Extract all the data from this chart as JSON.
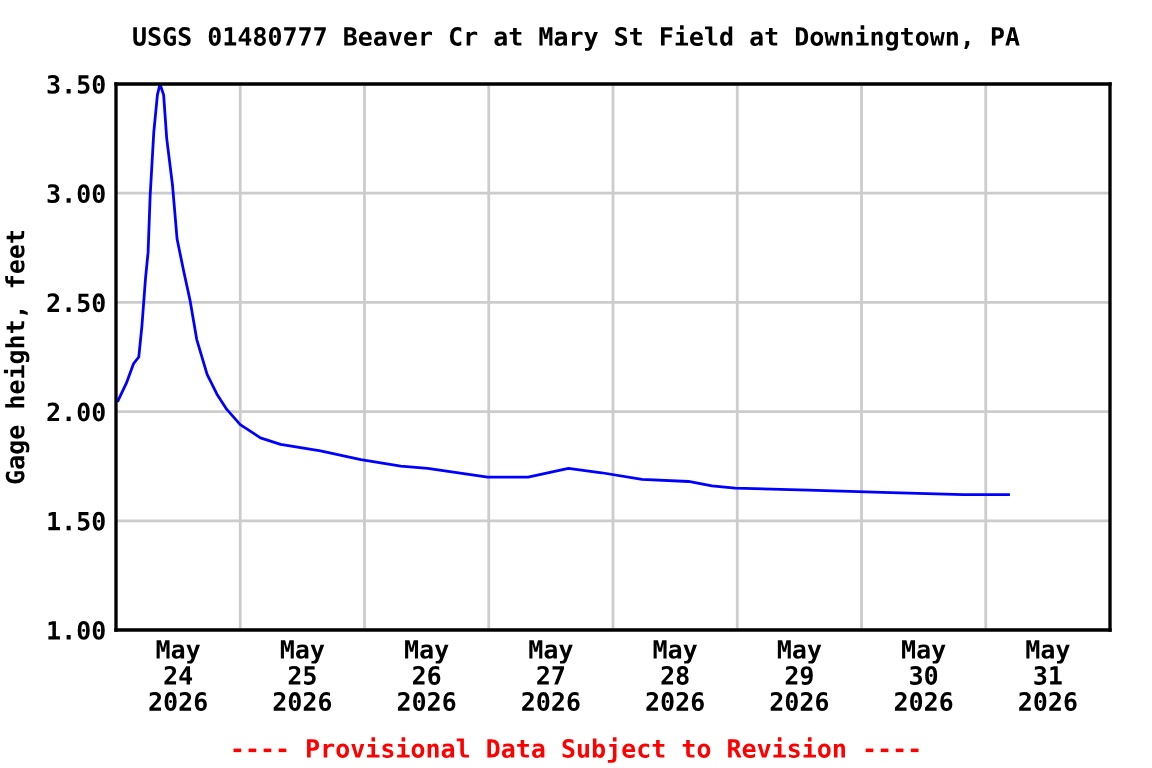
{
  "chart_data": {
    "type": "line",
    "title": "USGS 01480777 Beaver Cr at Mary St Field at Downingtown, PA",
    "ylabel": "Gage height, feet",
    "annotations": [
      "---- Provisional Data Subject to Revision ----"
    ],
    "x": [
      "2026-05-24T00:24",
      "2026-05-24T02:00",
      "2026-05-24T03:24",
      "2026-05-24T04:24",
      "2026-05-24T05:00",
      "2026-05-24T05:42",
      "2026-05-24T06:12",
      "2026-05-24T06:36",
      "2026-05-24T07:18",
      "2026-05-24T08:00",
      "2026-05-24T08:30",
      "2026-05-24T09:12",
      "2026-05-24T09:48",
      "2026-05-24T10:54",
      "2026-05-24T11:48",
      "2026-05-24T13:06",
      "2026-05-24T14:18",
      "2026-05-24T15:36",
      "2026-05-24T17:36",
      "2026-05-24T19:30",
      "2026-05-24T21:24",
      "2026-05-25T00:00",
      "2026-05-25T03:54",
      "2026-05-25T07:48",
      "2026-05-25T15:30",
      "2026-05-25T23:18",
      "2026-05-26T07:00",
      "2026-05-26T12:12",
      "2026-05-26T23:48",
      "2026-05-27T07:36",
      "2026-05-27T15:24",
      "2026-05-27T21:48",
      "2026-05-28T05:36",
      "2026-05-28T14:36",
      "2026-05-28T19:06",
      "2026-05-28T23:36",
      "2026-05-29T13:48",
      "2026-05-30T04:00",
      "2026-05-30T19:36",
      "2026-05-31T04:24"
    ],
    "series": [
      {
        "color": "#0000ff",
        "values": [
          2.05,
          2.13,
          2.22,
          2.25,
          2.39,
          2.61,
          2.73,
          2.99,
          3.28,
          3.45,
          3.5,
          3.45,
          3.25,
          3.04,
          2.79,
          2.64,
          2.51,
          2.33,
          2.17,
          2.08,
          2.01,
          1.94,
          1.88,
          1.85,
          1.82,
          1.78,
          1.75,
          1.74,
          1.7,
          1.7,
          1.74,
          1.72,
          1.69,
          1.68,
          1.66,
          1.65,
          1.64,
          1.63,
          1.62,
          1.62
        ]
      }
    ],
    "xlim": [
      "2026-05-24T00:00",
      "2026-06-01T00:00"
    ],
    "xticks": [
      {
        "value": "2026-05-25T00:00",
        "label": null
      },
      {
        "value": "2026-05-26T00:00",
        "label": null
      },
      {
        "value": "2026-05-27T00:00",
        "label": null
      },
      {
        "value": "2026-05-28T00:00",
        "label": null
      },
      {
        "value": "2026-05-29T00:00",
        "label": null
      },
      {
        "value": "2026-05-30T00:00",
        "label": null
      },
      {
        "value": "2026-05-31T00:00",
        "label": null
      },
      {
        "value": "2026-05-24T12:00",
        "label": "May\n24\n2026"
      },
      {
        "value": "2026-05-25T12:00",
        "label": "May\n25\n2026"
      },
      {
        "value": "2026-05-26T12:00",
        "label": "May\n26\n2026"
      },
      {
        "value": "2026-05-27T12:00",
        "label": "May\n27\n2026"
      },
      {
        "value": "2026-05-28T12:00",
        "label": "May\n28\n2026"
      },
      {
        "value": "2026-05-29T12:00",
        "label": "May\n29\n2026"
      },
      {
        "value": "2026-05-30T12:00",
        "label": "May\n30\n2026"
      },
      {
        "value": "2026-05-31T12:00",
        "label": "May\n31\n2026"
      }
    ],
    "ylim": [
      1.0,
      3.5
    ],
    "yticks": [
      {
        "value": 1.0,
        "label": "1.00"
      },
      {
        "value": 1.5,
        "label": "1.50"
      },
      {
        "value": 2.0,
        "label": "2.00"
      },
      {
        "value": 2.5,
        "label": "2.50"
      },
      {
        "value": 3.0,
        "label": "3.00"
      },
      {
        "value": 3.5,
        "label": "3.50"
      }
    ],
    "grid": true,
    "marker": "none",
    "line_style": "solid"
  }
}
